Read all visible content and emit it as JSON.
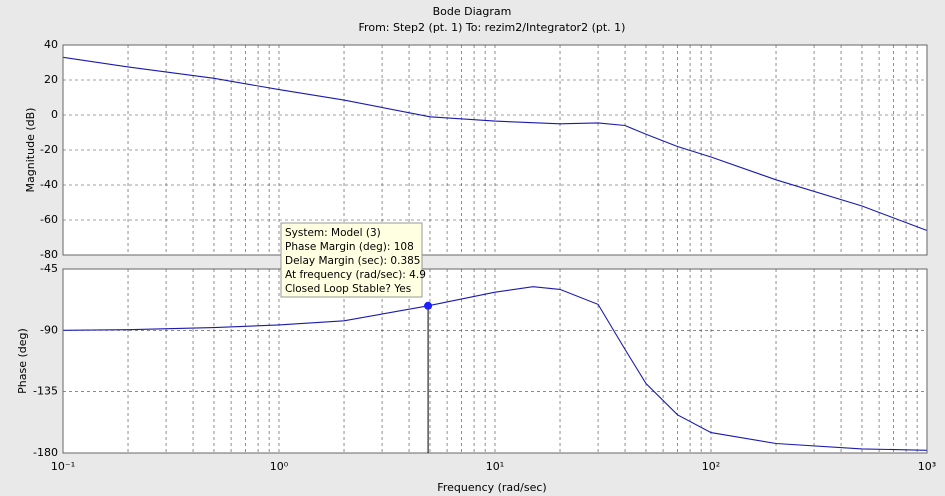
{
  "chart_data": [
    {
      "type": "line",
      "title": "Bode Diagram",
      "subtitle": "From: Step2 (pt. 1)  To: rezim2/Integrator2 (pt. 1)",
      "ylabel": "Magnitude (dB)",
      "xscale": "log",
      "xlim": [
        0.1,
        1000
      ],
      "xticks": [
        0.1,
        1,
        10,
        100,
        1000
      ],
      "ylim": [
        -80,
        40
      ],
      "yticks": [
        40,
        20,
        0,
        -20,
        -40,
        -60,
        -80
      ],
      "grid": true,
      "minor_grid": true,
      "x": [
        0.1,
        0.2,
        0.5,
        1,
        2,
        5,
        10,
        20,
        30,
        40,
        50,
        70,
        100,
        200,
        500,
        1000
      ],
      "series": [
        {
          "color": "#1a1ab0",
          "values": [
            33,
            27.5,
            21,
            14.5,
            8.5,
            -1,
            -3.5,
            -5,
            -4.5,
            -6,
            -11,
            -18,
            -24,
            -37,
            -52,
            -66
          ]
        }
      ]
    },
    {
      "type": "line",
      "ylabel": "Phase (deg)",
      "xlabel": "Frequency  (rad/sec)",
      "xscale": "log",
      "xlim": [
        0.1,
        1000
      ],
      "xticks": [
        {
          "value": 0.1,
          "label": "10⁻¹"
        },
        {
          "value": 1,
          "label": "10⁰"
        },
        {
          "value": 10,
          "label": "10¹"
        },
        {
          "value": 100,
          "label": "10²"
        },
        {
          "value": 1000,
          "label": "10³"
        }
      ],
      "ylim": [
        -180,
        -45
      ],
      "yticks": [
        -45,
        -90,
        -135,
        -180
      ],
      "grid": true,
      "minor_grid": true,
      "x": [
        0.1,
        0.2,
        0.5,
        1,
        2,
        4.9,
        10,
        15,
        20,
        30,
        40,
        50,
        70,
        100,
        200,
        500,
        1000
      ],
      "series": [
        {
          "color": "#1a1ab0",
          "values": [
            -90,
            -89.5,
            -88,
            -86,
            -83,
            -72,
            -62,
            -58,
            -60,
            -71,
            -104,
            -129,
            -152,
            -165,
            -173,
            -177,
            -178
          ]
        }
      ],
      "marker": {
        "x": 4.9,
        "y": -72,
        "color": "#1e1eff"
      },
      "annotation": [
        "System: Model (3)",
        "Phase Margin (deg): 108",
        "Delay Margin (sec): 0.385",
        "At frequency (rad/sec): 4.9",
        "Closed Loop Stable? Yes"
      ]
    }
  ]
}
